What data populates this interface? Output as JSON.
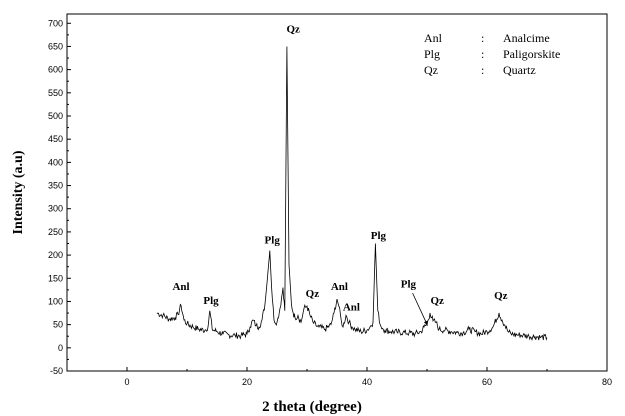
{
  "chart_data": {
    "type": "line",
    "title": "",
    "xlabel": "2 theta (degree)",
    "ylabel": "Intensity (a.u)",
    "xlim": [
      -10,
      80
    ],
    "ylim": [
      -50,
      720
    ],
    "x_ticks": [
      0,
      20,
      40,
      60,
      80
    ],
    "y_ticks": [
      -50,
      0,
      50,
      100,
      150,
      200,
      250,
      300,
      350,
      400,
      450,
      500,
      550,
      600,
      650,
      700
    ],
    "grid": false,
    "legend_position": "top-right",
    "legend": [
      {
        "abbr": "Anl",
        "sep": ":",
        "name": "Analcime"
      },
      {
        "abbr": "Plg",
        "sep": ":",
        "name": "Paligorskite"
      },
      {
        "abbr": "Qz",
        "sep": ":",
        "name": "Quartz"
      }
    ],
    "series": [
      {
        "x": [
          5.0,
          6.0,
          7.0,
          8.0,
          8.5,
          9.0,
          9.5,
          10.0,
          11.0,
          12.0,
          13.0,
          13.5,
          13.8,
          14.2,
          15.0,
          16.0,
          17.0,
          18.0,
          19.0,
          20.0,
          20.5,
          21.0,
          21.5,
          22.0,
          22.5,
          23.0,
          23.5,
          23.8,
          24.1,
          24.5,
          25.0,
          25.5,
          26.0,
          26.3,
          26.65,
          27.0,
          27.4,
          27.7,
          28.0,
          28.5,
          29.0,
          29.5,
          30.0,
          30.5,
          31.0,
          31.5,
          32.0,
          33.0,
          34.0,
          34.5,
          35.0,
          35.3,
          35.7,
          36.0,
          36.5,
          37.0,
          37.5,
          38.0,
          39.0,
          40.0,
          40.5,
          41.0,
          41.4,
          41.8,
          42.2,
          42.6,
          43.0,
          44.0,
          45.0,
          46.0,
          47.0,
          48.0,
          49.0,
          49.5,
          50.0,
          50.5,
          51.0,
          51.5,
          52.0,
          53.0,
          54.0,
          55.0,
          56.0,
          57.0,
          58.0,
          59.0,
          60.0,
          61.0,
          62.0,
          62.5,
          63.0,
          63.5,
          64.0,
          65.0,
          66.0,
          67.0,
          68.0,
          69.0,
          70.0
        ],
        "y": [
          75,
          70,
          62,
          65,
          72,
          92,
          60,
          52,
          45,
          40,
          38,
          45,
          80,
          40,
          35,
          30,
          28,
          27,
          26,
          30,
          45,
          60,
          48,
          45,
          60,
          95,
          165,
          210,
          130,
          60,
          55,
          85,
          130,
          80,
          650,
          180,
          95,
          75,
          65,
          70,
          55,
          85,
          90,
          70,
          55,
          48,
          45,
          40,
          50,
          75,
          105,
          90,
          60,
          45,
          70,
          55,
          45,
          40,
          35,
          38,
          45,
          55,
          225,
          80,
          50,
          42,
          38,
          35,
          34,
          33,
          32,
          30,
          35,
          45,
          50,
          75,
          58,
          55,
          40,
          38,
          35,
          33,
          32,
          40,
          35,
          30,
          35,
          45,
          75,
          60,
          48,
          35,
          30,
          28,
          27,
          25,
          24,
          23,
          22
        ]
      }
    ],
    "annotations": [
      {
        "text": "Anl",
        "x": 9.0,
        "y": 125
      },
      {
        "text": "Plg",
        "x": 14.0,
        "y": 95
      },
      {
        "text": "Plg",
        "x": 24.2,
        "y": 225
      },
      {
        "text": "Qz",
        "x": 27.7,
        "y": 680
      },
      {
        "text": "Qz",
        "x": 30.9,
        "y": 110
      },
      {
        "text": "Anl",
        "x": 35.4,
        "y": 125
      },
      {
        "text": "Anl",
        "x": 37.4,
        "y": 80
      },
      {
        "text": "Plg",
        "x": 41.9,
        "y": 235
      },
      {
        "text": "Plg",
        "x": 46.9,
        "y": 130
      },
      {
        "text": "Qz",
        "x": 51.7,
        "y": 95
      },
      {
        "text": "Qz",
        "x": 62.3,
        "y": 105
      }
    ]
  }
}
